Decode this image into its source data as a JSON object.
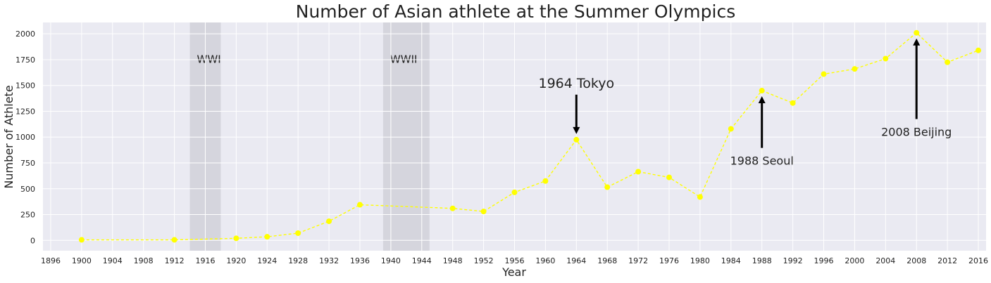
{
  "chart_data": {
    "type": "line",
    "title": "Number of Asian athlete at the Summer Olympics",
    "xlabel": "Year",
    "ylabel": "Number of Athlete",
    "xlim": [
      1895,
      2017
    ],
    "ylim": [
      -100,
      2110
    ],
    "xticks": [
      1896,
      1900,
      1904,
      1908,
      1912,
      1916,
      1920,
      1924,
      1928,
      1932,
      1936,
      1940,
      1944,
      1948,
      1952,
      1956,
      1960,
      1964,
      1968,
      1972,
      1976,
      1980,
      1984,
      1988,
      1992,
      1996,
      2000,
      2004,
      2008,
      2012,
      2016
    ],
    "yticks": [
      0,
      250,
      500,
      750,
      1000,
      1250,
      1500,
      1750,
      2000
    ],
    "grid": true,
    "series": [
      {
        "color": "#ffff00",
        "line_style": "dashed",
        "marker": "circle",
        "x": [
          1900,
          1912,
          1920,
          1924,
          1928,
          1932,
          1936,
          1948,
          1952,
          1956,
          1960,
          1964,
          1968,
          1972,
          1976,
          1980,
          1984,
          1988,
          1992,
          1996,
          2000,
          2004,
          2008,
          2012,
          2016
        ],
        "y": [
          5,
          5,
          20,
          35,
          70,
          185,
          345,
          310,
          280,
          465,
          575,
          975,
          515,
          665,
          610,
          420,
          1080,
          1450,
          1330,
          1610,
          1660,
          1760,
          2010,
          1725,
          1840
        ]
      }
    ],
    "shaded_regions": [
      {
        "label": "WWI",
        "x_start": 1914,
        "x_end": 1918
      },
      {
        "label": "WWII",
        "x_start": 1939,
        "x_end": 1945
      }
    ],
    "annotations": [
      {
        "text": "1964 Tokyo",
        "x_point": 1964,
        "y_point": 975,
        "x_text": 1964,
        "y_text": 1520
      },
      {
        "text": "1988 Seoul",
        "x_point": 1988,
        "y_point": 1450,
        "x_text": 1988,
        "y_text": 800
      },
      {
        "text": "2008 Beijing",
        "x_point": 2008,
        "y_point": 2010,
        "x_text": 2008,
        "y_text": 1080
      }
    ]
  }
}
